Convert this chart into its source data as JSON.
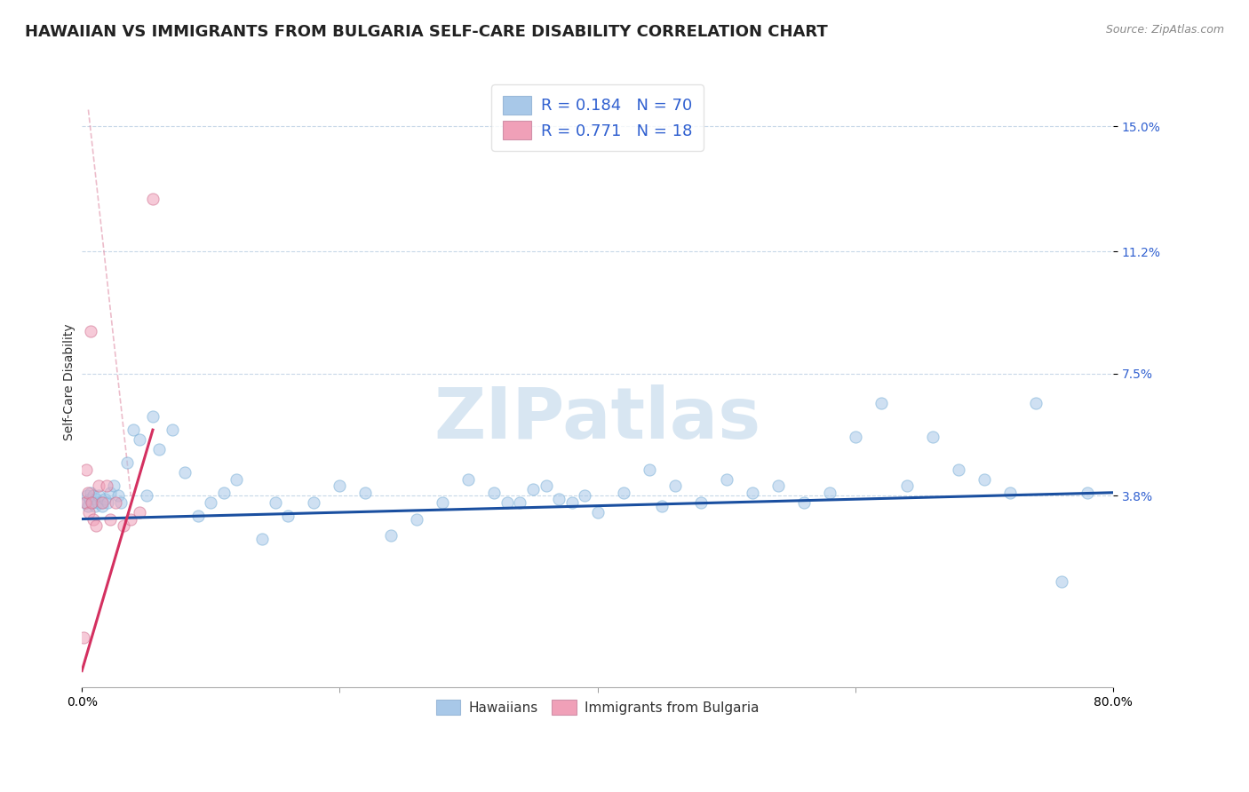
{
  "title": "HAWAIIAN VS IMMIGRANTS FROM BULGARIA SELF-CARE DISABILITY CORRELATION CHART",
  "source": "Source: ZipAtlas.com",
  "ylabel": "Self-Care Disability",
  "watermark": "ZIPatlas",
  "xlim": [
    0.0,
    80.0
  ],
  "ylim": [
    -2.0,
    16.5
  ],
  "ytick_values": [
    3.8,
    7.5,
    11.2,
    15.0
  ],
  "ytick_labels": [
    "3.8%",
    "7.5%",
    "11.2%",
    "15.0%"
  ],
  "xtick_values": [
    0.0,
    80.0
  ],
  "xtick_labels": [
    "0.0%",
    "80.0%"
  ],
  "hawaiians_color": "#a8c8e8",
  "bulgaria_color": "#f0a0b8",
  "trend_hawaii_color": "#1a4fa0",
  "trend_bulgaria_color": "#d43060",
  "dashed_color": "#e090a8",
  "legend_R_hawaii": "0.184",
  "legend_N_hawaii": "70",
  "legend_R_bulgaria": "0.771",
  "legend_N_bulgaria": "18",
  "legend_text_color": "#3060d0",
  "grid_color": "#c8d8e8",
  "background_color": "#ffffff",
  "title_fontsize": 13,
  "axis_label_fontsize": 10,
  "tick_fontsize": 10,
  "legend_fontsize": 13,
  "hawaiians_x": [
    0.3,
    0.4,
    0.5,
    0.6,
    0.7,
    0.8,
    0.9,
    1.0,
    1.1,
    1.2,
    1.3,
    1.5,
    1.6,
    1.8,
    2.0,
    2.2,
    2.5,
    2.8,
    3.0,
    3.5,
    4.0,
    4.5,
    5.0,
    5.5,
    6.0,
    7.0,
    8.0,
    9.0,
    10.0,
    11.0,
    12.0,
    14.0,
    15.0,
    16.0,
    18.0,
    20.0,
    22.0,
    24.0,
    26.0,
    28.0,
    30.0,
    32.0,
    34.0,
    36.0,
    38.0,
    40.0,
    42.0,
    44.0,
    45.0,
    46.0,
    48.0,
    50.0,
    52.0,
    54.0,
    56.0,
    58.0,
    60.0,
    62.0,
    64.0,
    66.0,
    68.0,
    70.0,
    72.0,
    74.0,
    76.0,
    78.0,
    33.0,
    35.0,
    37.0,
    39.0
  ],
  "hawaiians_y": [
    3.6,
    3.8,
    3.5,
    3.7,
    3.9,
    3.6,
    3.8,
    3.5,
    3.7,
    3.6,
    3.8,
    3.6,
    3.5,
    3.7,
    3.6,
    3.9,
    4.1,
    3.8,
    3.6,
    4.8,
    5.8,
    5.5,
    3.8,
    6.2,
    5.2,
    5.8,
    4.5,
    3.2,
    3.6,
    3.9,
    4.3,
    2.5,
    3.6,
    3.2,
    3.6,
    4.1,
    3.9,
    2.6,
    3.1,
    3.6,
    4.3,
    3.9,
    3.6,
    4.1,
    3.6,
    3.3,
    3.9,
    4.6,
    3.5,
    4.1,
    3.6,
    4.3,
    3.9,
    4.1,
    3.6,
    3.9,
    5.6,
    6.6,
    4.1,
    5.6,
    4.6,
    4.3,
    3.9,
    6.6,
    1.2,
    3.9,
    3.6,
    4.0,
    3.7,
    3.8
  ],
  "bulgaria_x": [
    0.15,
    0.25,
    0.35,
    0.45,
    0.55,
    0.65,
    0.75,
    0.9,
    1.1,
    1.3,
    1.6,
    1.9,
    2.2,
    2.6,
    3.2,
    3.8,
    4.5,
    5.5
  ],
  "bulgaria_y": [
    -0.5,
    3.6,
    4.6,
    3.9,
    3.3,
    8.8,
    3.6,
    3.1,
    2.9,
    4.1,
    3.6,
    4.1,
    3.1,
    3.6,
    2.9,
    3.1,
    3.3,
    12.8
  ],
  "hawaii_trend_x0": 0.0,
  "hawaii_trend_y0": 3.1,
  "hawaii_trend_x1": 80.0,
  "hawaii_trend_y1": 3.9,
  "bulg_trend_x0": 0.0,
  "bulg_trend_y0": -1.5,
  "bulg_trend_x1": 5.5,
  "bulg_trend_y1": 5.8,
  "dashed_x0": 0.5,
  "dashed_y0": 15.5,
  "dashed_x1": 3.8,
  "dashed_y1": 3.8
}
